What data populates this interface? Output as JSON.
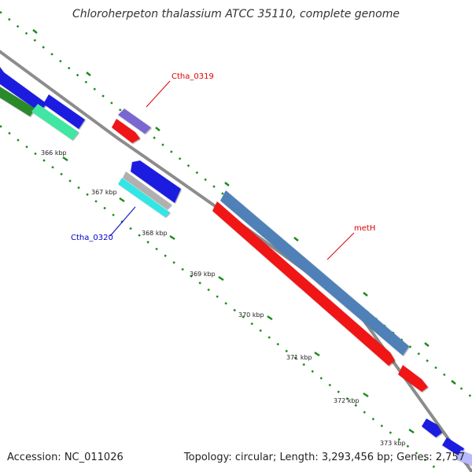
{
  "title": "Chloroherpeton thalassium ATCC 35110, complete genome",
  "footer": {
    "accession": "Accession: NC_011026",
    "summary": "Topology: circular; Length: 3,293,456 bp; Genes: 2,757"
  },
  "colors": {
    "backbone": "#8c8c8c",
    "tick_dots": "#1d8a1d",
    "label_red": "#dd0000",
    "label_blue": "#0000cc",
    "gene_blue": "#1f1fe0",
    "gene_red": "#f01515",
    "gene_steel": "#4f81b8",
    "gene_purple": "#7a68d0",
    "gene_mint": "#3fe6a2",
    "gene_green": "#2a8a2a",
    "gene_cyan": "#33e6e6",
    "gene_gray": "#b0b0b0",
    "gene_lavender": "#b8b8ff"
  },
  "ticks": [
    "366 kbp",
    "367 kbp",
    "368 kbp",
    "369 kbp",
    "370 kbp",
    "371 kbp",
    "372 kbp",
    "373 kbp"
  ],
  "genes": {
    "ctha_0319": "Ctha_0319",
    "ctha_0320": "Ctha_0320",
    "meth": "metH"
  }
}
